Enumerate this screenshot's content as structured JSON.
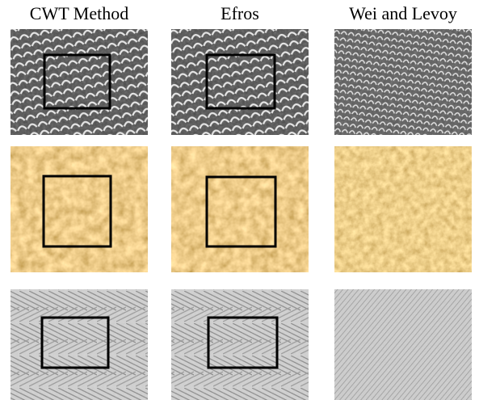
{
  "headers": [
    "CWT Method",
    "Efros",
    "Wei and Levoy"
  ]
}
